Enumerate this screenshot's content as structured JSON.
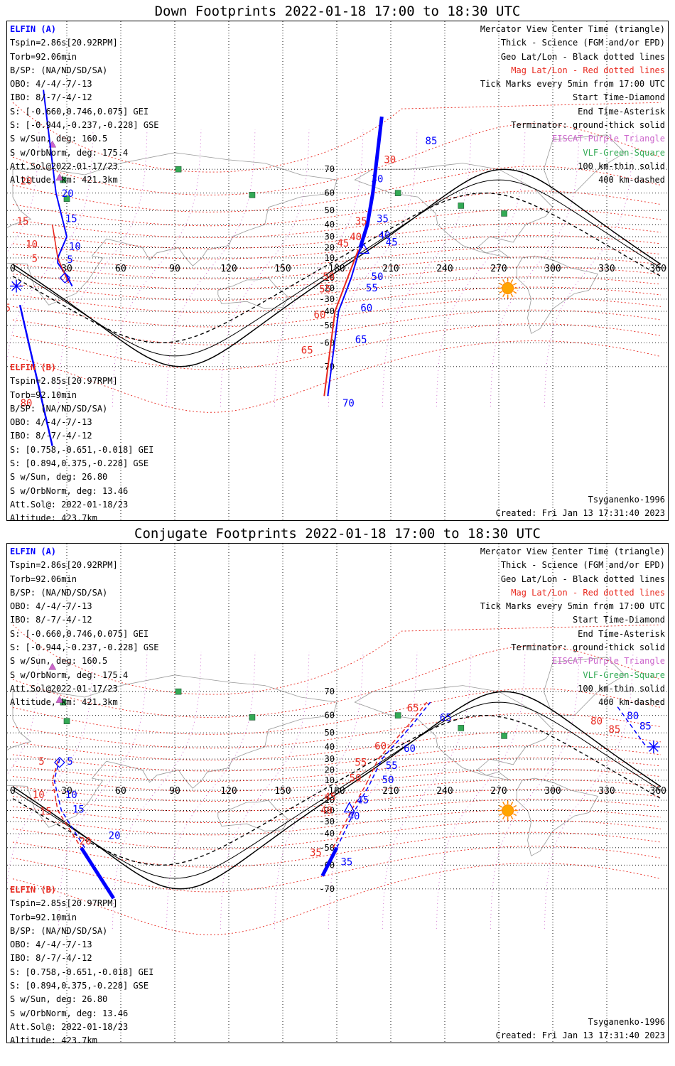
{
  "panels": [
    {
      "title": "Down Footprints 2022-01-18 17:00 to 18:30 UTC",
      "elfin_a": {
        "name": "ELFIN (A)",
        "lines": [
          "Tspin=2.86s[20.92RPM]",
          "Torb=92.06min",
          "B/SP: (NA/ND/SD/SA)",
          "OBO: 4/-4/-7/-13",
          "IBO: 8/-7/-4/-12",
          "S: [-0.660,0.746,0.075] GEI",
          "S: [-0.944,-0.237,-0.228] GSE",
          "S w/Sun, deg: 160.5",
          "S w/OrbNorm, deg: 175.4",
          "Att.Sol@2022-01-17/23",
          "Altitude, km: 421.3km"
        ]
      },
      "elfin_b": {
        "name": "ELFIN (B)",
        "lines": [
          "Tspin=2.85s[20.97RPM]",
          "Torb=92.10min",
          "B/SP: (NA/ND/SD/SA)",
          "OBO: 4/-4/-7/-13",
          "IBO: 8/-7/-4/-12",
          "S: [0.758,-0.651,-0.018] GEI",
          "S: [0.894,0.375,-0.228] GSE",
          "S w/Sun, deg: 26.80",
          "S w/OrbNorm, deg: 13.46",
          "Att.Sol@: 2022-01-18/23",
          "Altitude: 423.7km"
        ]
      },
      "legend": [
        {
          "text": "Mercator View Center Time (triangle)",
          "color": "#000000"
        },
        {
          "text": "Thick - Science (FGM and/or EPD)",
          "color": "#000000"
        },
        {
          "text": "Geo Lat/Lon - Black dotted lines",
          "color": "#000000"
        },
        {
          "text": "Mag Lat/Lon - Red dotted lines",
          "color": "#e8281e"
        },
        {
          "text": "Tick Marks every 5min from 17:00 UTC",
          "color": "#000000"
        },
        {
          "text": "Start Time-Diamond",
          "color": "#000000"
        },
        {
          "text": "End Time-Asterisk",
          "color": "#000000"
        },
        {
          "text": "Terminator: ground-thick solid",
          "color": "#000000"
        },
        {
          "text": "EISCAT-Purple Triangle",
          "color": "#cc66cc"
        },
        {
          "text": "VLF-Green-Square",
          "color": "#33aa55"
        },
        {
          "text": "100 km-thin solid",
          "color": "#000000"
        },
        {
          "text": "400 km-dashed",
          "color": "#000000"
        }
      ],
      "model": "Tsyganenko-1996",
      "created": "Created: Fri Jan 13 17:31:40 2023",
      "lon_ticks": [
        "0",
        "30",
        "60",
        "90",
        "120",
        "150",
        "180",
        "210",
        "240",
        "270",
        "300",
        "330",
        "360"
      ],
      "lat_ticks": [
        "70",
        "60",
        "50",
        "40",
        "30",
        "20",
        "10",
        "-10",
        "-20",
        "-30",
        "-40",
        "-50",
        "-60",
        "-70"
      ],
      "track_a_labels": [
        {
          "t": "5"
        },
        {
          "t": "10"
        },
        {
          "t": "15"
        },
        {
          "t": "20"
        },
        {
          "t": "85"
        },
        {
          "t": "30"
        },
        {
          "t": "35"
        },
        {
          "t": "40"
        },
        {
          "t": "45"
        },
        {
          "t": "50"
        },
        {
          "t": "55"
        },
        {
          "t": "60"
        },
        {
          "t": "65"
        },
        {
          "t": "70"
        }
      ],
      "track_b_labels": [
        {
          "t": "5"
        },
        {
          "t": "10"
        },
        {
          "t": "15"
        },
        {
          "t": "20"
        },
        {
          "t": "85"
        },
        {
          "t": "30"
        },
        {
          "t": "35"
        },
        {
          "t": "40"
        },
        {
          "t": "45"
        },
        {
          "t": "50"
        },
        {
          "t": "55"
        },
        {
          "t": "60"
        },
        {
          "t": "65"
        },
        {
          "t": "80"
        }
      ]
    },
    {
      "title": "Conjugate Footprints 2022-01-18 17:00 to 18:30 UTC",
      "elfin_a": {
        "name": "ELFIN (A)",
        "lines": [
          "Tspin=2.86s[20.92RPM]",
          "Torb=92.06min",
          "B/SP: (NA/ND/SD/SA)",
          "OBO: 4/-4/-7/-13",
          "IBO: 8/-7/-4/-12",
          "S: [-0.660,0.746,0.075] GEI",
          "S: [-0.944,-0.237,-0.228] GSE",
          "S w/Sun, deg: 160.5",
          "S w/OrbNorm, deg: 175.4",
          "Att.Sol@2022-01-17/23",
          "Altitude, km: 421.3km"
        ]
      },
      "elfin_b": {
        "name": "ELFIN (B)",
        "lines": [
          "Tspin=2.85s[20.97RPM]",
          "Torb=92.10min",
          "B/SP: (NA/ND/SD/SA)",
          "OBO: 4/-4/-7/-13",
          "IBO: 8/-7/-4/-12",
          "S: [0.758,-0.651,-0.018] GEI",
          "S: [0.894,0.375,-0.228] GSE",
          "S w/Sun, deg: 26.80",
          "S w/OrbNorm, deg: 13.46",
          "Att.Sol@: 2022-01-18/23",
          "Altitude: 423.7km"
        ]
      },
      "legend": [
        {
          "text": "Mercator View Center Time (triangle)",
          "color": "#000000"
        },
        {
          "text": "Thick - Science (FGM and/or EPD)",
          "color": "#000000"
        },
        {
          "text": "Geo Lat/Lon - Black dotted lines",
          "color": "#000000"
        },
        {
          "text": "Mag Lat/Lon - Red dotted lines",
          "color": "#e8281e"
        },
        {
          "text": "Tick Marks every 5min from 17:00 UTC",
          "color": "#000000"
        },
        {
          "text": "Start Time-Diamond",
          "color": "#000000"
        },
        {
          "text": "End Time-Asterisk",
          "color": "#000000"
        },
        {
          "text": "Terminator: ground-thick solid",
          "color": "#000000"
        },
        {
          "text": "EISCAT-Purple Triangle",
          "color": "#cc66cc"
        },
        {
          "text": "VLF-Green-Square",
          "color": "#33aa55"
        },
        {
          "text": "100 km-thin solid",
          "color": "#000000"
        },
        {
          "text": "400 km-dashed",
          "color": "#000000"
        }
      ],
      "model": "Tsyganenko-1996",
      "created": "Created: Fri Jan 13 17:31:40 2023",
      "lon_ticks": [
        "0",
        "30",
        "60",
        "90",
        "120",
        "150",
        "180",
        "210",
        "240",
        "270",
        "300",
        "330",
        "360"
      ],
      "lat_ticks": [
        "70",
        "60",
        "50",
        "40",
        "30",
        "20",
        "10",
        "-10",
        "-20",
        "-30",
        "-40",
        "-50",
        "-60",
        "-70"
      ],
      "track_a_labels": [
        {
          "t": "5"
        },
        {
          "t": "10"
        },
        {
          "t": "15"
        },
        {
          "t": "20"
        },
        {
          "t": "45"
        },
        {
          "t": "50"
        },
        {
          "t": "55"
        },
        {
          "t": "60"
        },
        {
          "t": "65"
        },
        {
          "t": "80"
        },
        {
          "t": "85"
        },
        {
          "t": "40"
        },
        {
          "t": "35"
        }
      ],
      "track_b_labels": [
        {
          "t": "5"
        },
        {
          "t": "10"
        },
        {
          "t": "15"
        },
        {
          "t": "20"
        },
        {
          "t": "45"
        },
        {
          "t": "50"
        },
        {
          "t": "55"
        },
        {
          "t": "60"
        },
        {
          "t": "65"
        },
        {
          "t": "80"
        },
        {
          "t": "85"
        },
        {
          "t": "40"
        },
        {
          "t": "35"
        }
      ]
    }
  ],
  "colors": {
    "elfin_a": "#0000ff",
    "elfin_b": "#e8281e",
    "mag_grid": "#e8281e",
    "geo_grid": "#000000",
    "eiscat": "#cc66cc",
    "vlf": "#33aa55",
    "sun": "#ffa500",
    "coast": "#999999"
  }
}
